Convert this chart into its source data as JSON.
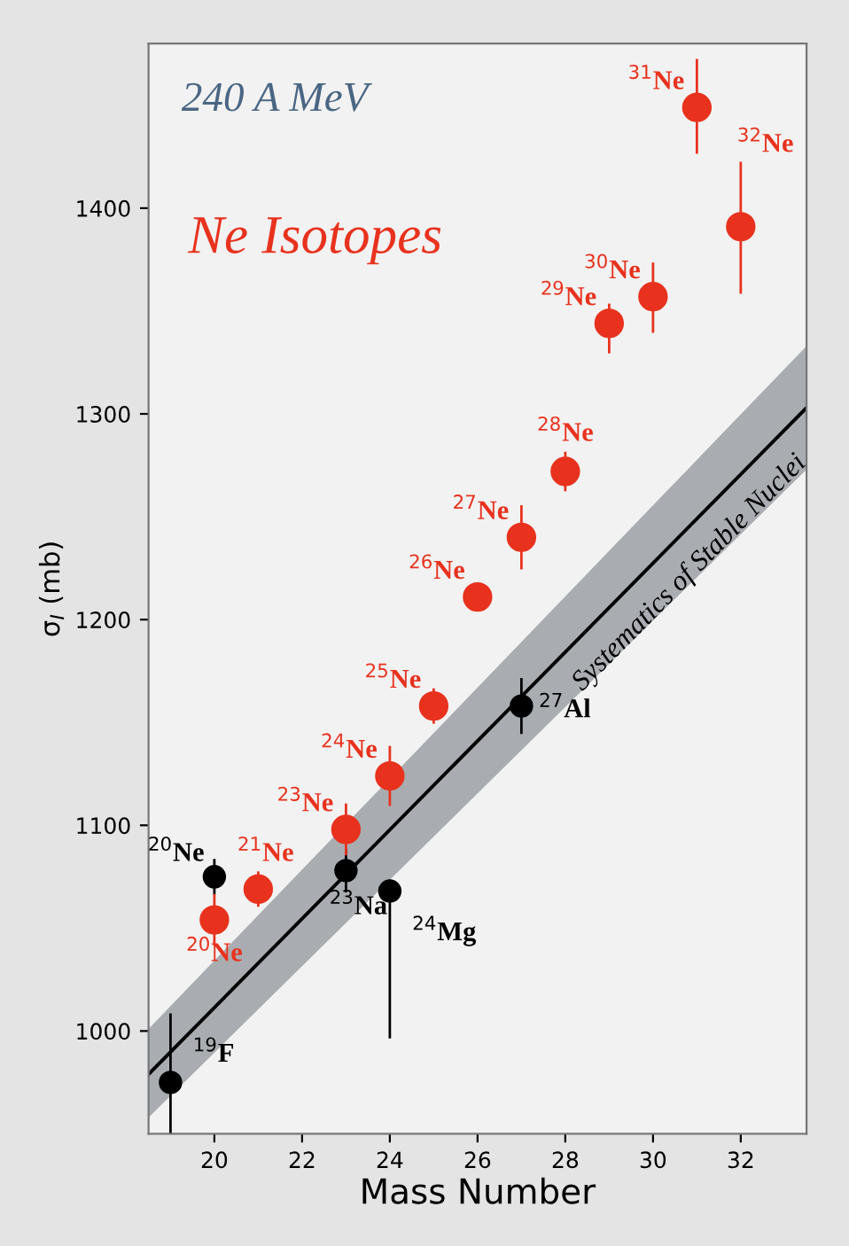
{
  "chart_data": {
    "type": "scatter",
    "xlabel": "Mass Number",
    "ylabel": "σ$_{I}$ (mb)",
    "xlim": [
      18.5,
      33.5
    ],
    "ylim": [
      950,
      1480
    ],
    "xticks": [
      20,
      22,
      24,
      26,
      28,
      30,
      32
    ],
    "yticks": [
      1000,
      1100,
      1200,
      1300,
      1400
    ],
    "grid": false,
    "legend": false,
    "series": [
      {
        "type": "line",
        "marker": "none",
        "name": "Systematics of Stable Nuclei",
        "color": "#000000",
        "x": [
          18.5,
          33.5
        ],
        "values": [
          979,
          1303
        ],
        "lower": [
          958,
          1273
        ],
        "upper": [
          1001,
          1333
        ]
      },
      {
        "marker": "circle",
        "color": "#000000",
        "x": [
          19,
          20,
          23,
          24,
          27
        ],
        "values": [
          975,
          1075,
          1078,
          1068,
          1158
        ],
        "errors": [
          [
            951,
            1008
          ],
          8,
          10,
          [
            997,
            1073
          ],
          [
            1145,
            1171
          ]
        ]
      },
      {
        "marker": "circle",
        "name": "Ne Isotopes",
        "color": "#e8321e",
        "x": [
          20,
          21,
          23,
          24,
          25,
          26,
          27,
          28,
          29,
          30,
          31,
          32
        ],
        "values": [
          1054,
          1069,
          1098,
          1124,
          1158,
          1211,
          1240,
          1272,
          1344,
          1357,
          1449,
          1391
        ],
        "errors": [
          12,
          8,
          12,
          14,
          8,
          5,
          15,
          9,
          [
            1330,
            1353
          ],
          [
            1340,
            1373
          ],
          [
            1427,
            1472
          ],
          [
            1359,
            1422
          ]
        ]
      }
    ],
    "annotations": [
      "240 A MeV",
      {
        "text": "$^{19}$F",
        "x": 19,
        "y": 975
      },
      {
        "text": "$^{20}$Ne",
        "x": 20,
        "y": 1075
      },
      {
        "text": "$^{23}$Na",
        "x": 23,
        "y": 1078
      },
      {
        "text": "$^{24}$Mg",
        "x": 24,
        "y": 1068
      },
      {
        "text": "$^{27}$Al",
        "x": 27,
        "y": 1158
      },
      {
        "text": "$^{20}$Ne",
        "x": 20,
        "y": 1054
      },
      {
        "text": "$^{21}$Ne",
        "x": 21,
        "y": 1069
      },
      {
        "text": "$^{23}$Ne",
        "x": 23,
        "y": 1098
      },
      {
        "text": "$^{24}$Ne",
        "x": 24,
        "y": 1124
      },
      {
        "text": "$^{25}$Ne",
        "x": 25,
        "y": 1158
      },
      {
        "text": "$^{26}$Ne",
        "x": 26,
        "y": 1211
      },
      {
        "text": "$^{27}$Ne",
        "x": 27,
        "y": 1240
      },
      {
        "text": "$^{28}$Ne",
        "x": 28,
        "y": 1272
      },
      {
        "text": "$^{29}$Ne",
        "x": 29,
        "y": 1344
      },
      {
        "text": "$^{30}$Ne",
        "x": 30,
        "y": 1357
      },
      {
        "text": "$^{31}$Ne",
        "x": 31,
        "y": 1449
      },
      {
        "text": "$^{32}$Ne",
        "x": 32,
        "y": 1391
      }
    ]
  }
}
